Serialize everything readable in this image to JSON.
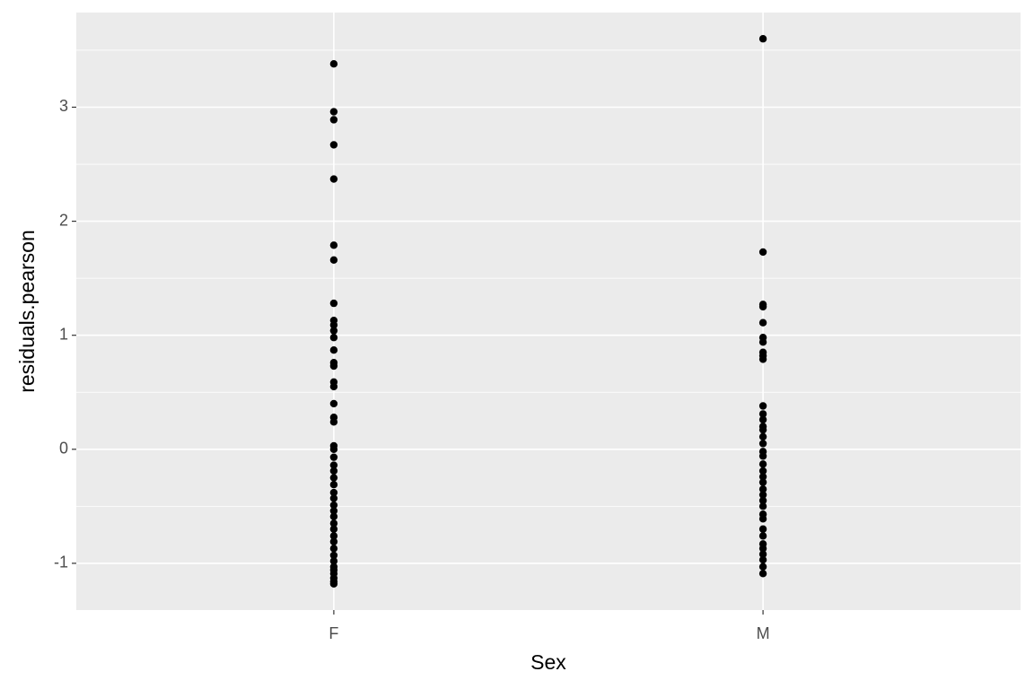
{
  "chart_data": {
    "type": "strip",
    "x_label": "Sex",
    "y_label": "residuals.pearson",
    "categories": [
      "F",
      "M"
    ],
    "values": [
      [
        3.38,
        2.96,
        2.89,
        2.67,
        2.37,
        1.79,
        1.66,
        1.28,
        1.13,
        1.09,
        1.04,
        0.98,
        0.87,
        0.76,
        0.73,
        0.59,
        0.55,
        0.4,
        0.28,
        0.24,
        0.03,
        0.0,
        -0.07,
        -0.14,
        -0.19,
        -0.25,
        -0.31,
        -0.38,
        -0.43,
        -0.49,
        -0.54,
        -0.59,
        -0.65,
        -0.7,
        -0.76,
        -0.81,
        -0.87,
        -0.93,
        -0.98,
        -1.03,
        -1.06,
        -1.09,
        -1.13,
        -1.16,
        -1.18
      ],
      [
        3.6,
        1.73,
        1.27,
        1.25,
        1.11,
        0.98,
        0.94,
        0.85,
        0.82,
        0.79,
        0.38,
        0.31,
        0.26,
        0.2,
        0.17,
        0.11,
        0.05,
        -0.02,
        -0.06,
        -0.13,
        -0.19,
        -0.24,
        -0.29,
        -0.35,
        -0.4,
        -0.45,
        -0.5,
        -0.57,
        -0.61,
        -0.7,
        -0.76,
        -0.83,
        -0.87,
        -0.92,
        -0.97,
        -1.03,
        -1.09
      ]
    ],
    "color": "#000000",
    "ylim": [
      -1.41,
      3.83
    ],
    "yticks": [
      -1,
      0,
      1,
      2,
      3
    ],
    "minor_yticks": [
      -0.5,
      0.5,
      1.5,
      2.5,
      3.5
    ],
    "grid": true
  }
}
